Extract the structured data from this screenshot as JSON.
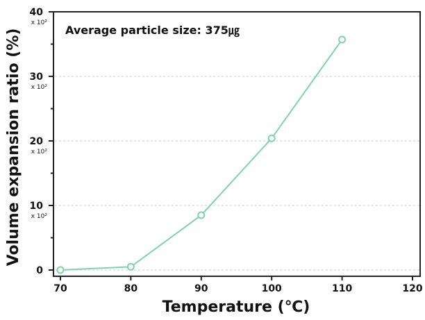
{
  "chart_data": {
    "type": "line",
    "annotation": "Average particle size: 375㎍",
    "xlabel": "Temperature (℃)",
    "ylabel": "Volume expansion ratio (%)",
    "y_multiplier_label": "x 10²",
    "xlim": [
      70,
      120
    ],
    "ylim": [
      0,
      40
    ],
    "x_ticks": [
      "70",
      "80",
      "90",
      "100",
      "110",
      "120"
    ],
    "y_ticks": [
      "0",
      "10",
      "20",
      "30",
      "40"
    ],
    "grid": "horizontal dotted",
    "x": [
      70,
      80,
      90,
      100,
      110
    ],
    "series": [
      {
        "values": [
          0,
          0.5,
          8.5,
          20.4,
          35.7
        ],
        "color": "#7fd3a8",
        "marker": "open-circle"
      }
    ]
  }
}
